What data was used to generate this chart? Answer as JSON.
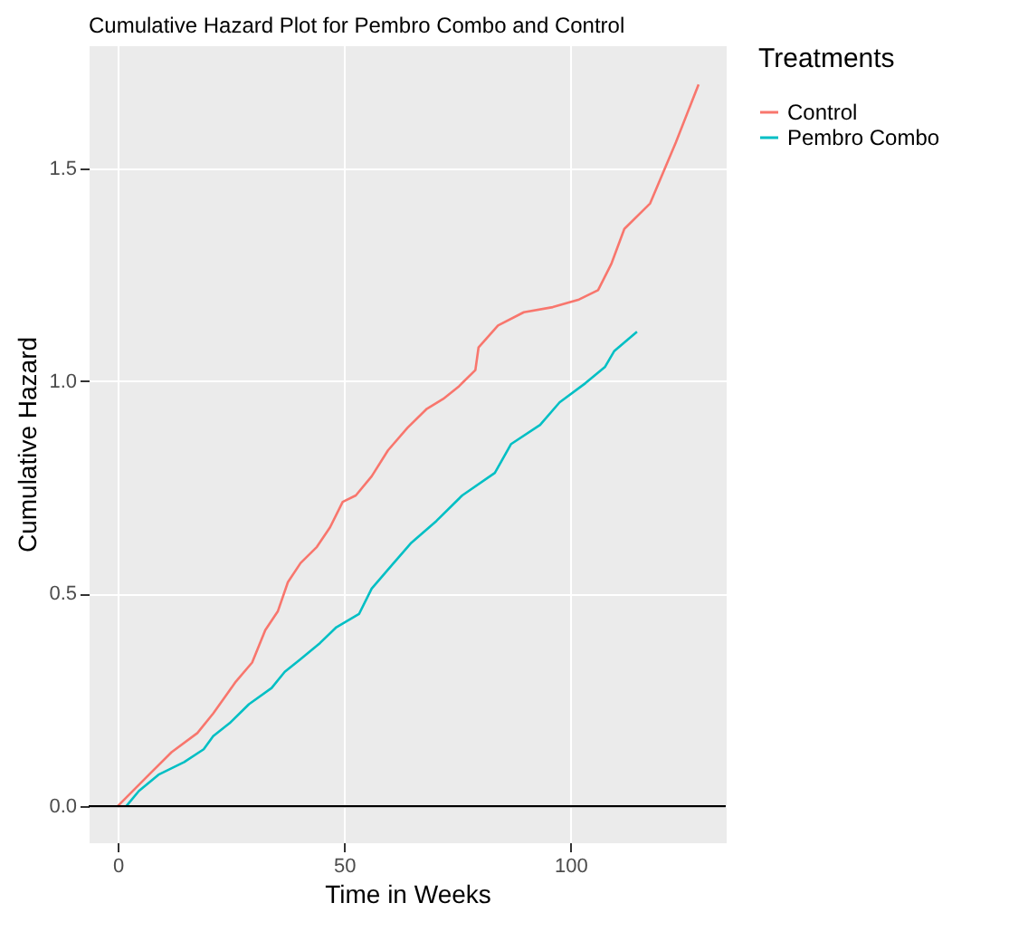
{
  "chart_data": {
    "type": "line",
    "title": "Cumulative Hazard Plot for Pembro Combo and Control",
    "xlabel": "Time in Weeks",
    "ylabel": "Cumulative Hazard",
    "legend_title": "Treatments",
    "legend": "right",
    "grid": true,
    "xlim": [
      -6.4,
      134.3
    ],
    "xticks": [
      0,
      50,
      100
    ],
    "ylim": [
      -0.085,
      1.79
    ],
    "yticks": [
      {
        "value": 0,
        "label": "0.0"
      },
      0.5,
      {
        "value": 1,
        "label": "1.0"
      },
      1.5
    ],
    "ref_lines": [
      {
        "axis": "y",
        "value": 0,
        "color": "#000000"
      }
    ],
    "series": [
      {
        "name": "Control",
        "color": "#f8766d",
        "x": [
          0,
          6.9,
          11.9,
          17.6,
          21.1,
          26.1,
          29.7,
          32.6,
          35.4,
          37.6,
          40.4,
          44,
          46.9,
          49.7,
          52.6,
          56.1,
          59.7,
          64,
          68.3,
          71.9,
          75.4,
          79,
          79.7,
          84,
          89.7,
          96.1,
          101.9,
          106.1,
          109,
          111.9,
          117.6,
          123.3,
          128.3
        ],
        "values": [
          0,
          0.074,
          0.127,
          0.172,
          0.218,
          0.293,
          0.338,
          0.414,
          0.459,
          0.527,
          0.572,
          0.61,
          0.656,
          0.716,
          0.731,
          0.776,
          0.837,
          0.89,
          0.935,
          0.958,
          0.988,
          1.026,
          1.079,
          1.131,
          1.162,
          1.174,
          1.192,
          1.214,
          1.275,
          1.358,
          1.418,
          1.562,
          1.698
        ]
      },
      {
        "name": "Pembro Combo",
        "color": "#00bfc4",
        "x": [
          1.9,
          4.7,
          9,
          14.7,
          19,
          21.1,
          24.7,
          29,
          34,
          36.9,
          40.4,
          44.7,
          48.3,
          53.3,
          56.1,
          60.4,
          64.7,
          70.4,
          76.1,
          83.3,
          86.9,
          93.3,
          97.6,
          103.3,
          107.6,
          109.7,
          114.7
        ],
        "values": [
          0,
          0.036,
          0.074,
          0.104,
          0.134,
          0.165,
          0.195,
          0.24,
          0.278,
          0.316,
          0.346,
          0.384,
          0.421,
          0.452,
          0.512,
          0.565,
          0.618,
          0.671,
          0.731,
          0.784,
          0.852,
          0.897,
          0.95,
          0.995,
          1.033,
          1.071,
          1.116
        ]
      }
    ]
  }
}
